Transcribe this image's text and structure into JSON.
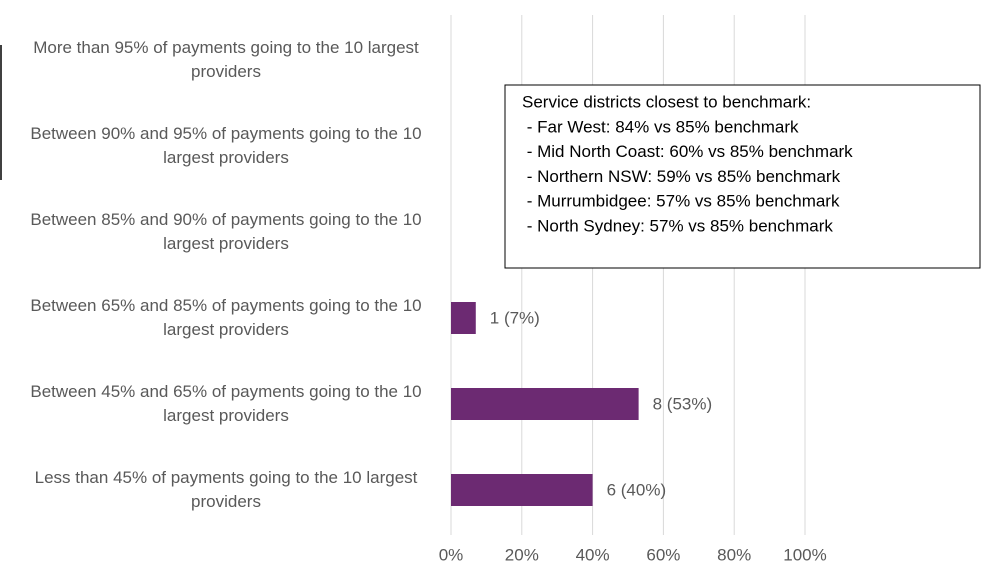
{
  "chart_data": {
    "type": "bar",
    "orientation": "horizontal",
    "categories": [
      "More than 95% of payments going to the 10 largest providers",
      "Between 90% and 95% of payments going to the 10 largest providers",
      "Between 85% and 90% of payments going to the 10 largest providers",
      "Between 65% and 85% of payments going to the 10 largest providers",
      "Between 45% and 65% of payments going to the 10 largest providers",
      "Less than 45% of payments going to the 10 largest providers"
    ],
    "values": [
      0,
      0,
      0,
      7,
      53,
      40
    ],
    "value_labels": [
      null,
      null,
      null,
      "1 (7%)",
      "8 (53%)",
      "6 (40%)"
    ],
    "color": "#6c2a72",
    "xlim": [
      0,
      100
    ],
    "xticks": [
      {
        "value": 0,
        "label": "0%"
      },
      {
        "value": 20,
        "label": "20%"
      },
      {
        "value": 40,
        "label": "40%"
      },
      {
        "value": 60,
        "label": "60%"
      },
      {
        "value": 80,
        "label": "80%"
      },
      {
        "value": 100,
        "label": "100%"
      }
    ],
    "grid": true,
    "annotation": [
      "Service districts closest to benchmark:",
      " - Far West: 84% vs 85% benchmark",
      " - Mid North Coast: 60% vs 85% benchmark",
      " - Northern NSW: 59% vs 85% benchmark",
      " - Murrumbidgee: 57% vs 85% benchmark",
      " - North Sydney: 57% vs 85% benchmark"
    ]
  }
}
